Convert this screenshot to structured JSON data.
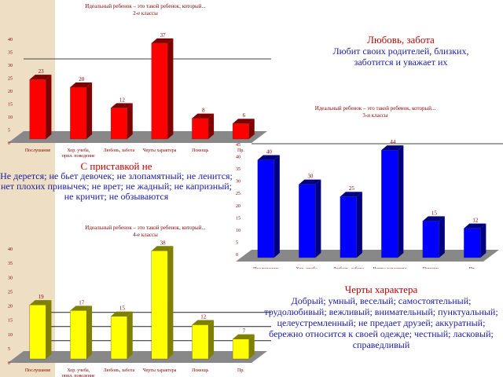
{
  "texts": {
    "love": {
      "heading": "Любовь, забота",
      "body": "Любит своих родителей, близких, заботится и уважает их"
    },
    "ne": {
      "heading": "С приставкой не",
      "body": "Не дерется; не бьет девочек; не злопамятный; не ленится; нет плохих привычек; не врет; не жадный; не капризный; не кричит; не обзываются"
    },
    "traits": {
      "heading": "Черты характера",
      "body": "Добрый; умный, веселый; самостоятельный; трудолюбивый; вежливый; внимательный; пунктуальный; целеустремленный; не предает друзей; аккуратный; бережно относится к своей одежде; честный; ласковый; справедливый"
    }
  },
  "chart_data": [
    {
      "type": "bar",
      "title": "Идеальный ребенок – это такой ребенок, который...",
      "subtitle": "2-е классы",
      "color": "#ff0000",
      "dark": "#800000",
      "categories": [
        "Послушание",
        "Хор. учеба, прил. поведение",
        "Любовь, забота",
        "Черты характера",
        "Помощь",
        "Пр."
      ],
      "values": [
        23,
        20,
        12,
        37,
        8,
        6
      ],
      "ylim": [
        0,
        40
      ],
      "ticks": [
        0,
        5,
        10,
        15,
        20,
        25,
        30,
        35,
        40
      ]
    },
    {
      "type": "bar",
      "title": "Идеальный ребенок – это такой ребенок, который...",
      "subtitle": "3-и классы",
      "color": "#0000ff",
      "dark": "#000080",
      "categories": [
        "Послушание",
        "Хор. учеба, прил. поведение",
        "Любовь, забота",
        "Черты характера",
        "Помощь",
        "Пр."
      ],
      "values": [
        40,
        30,
        25,
        44,
        15,
        12
      ],
      "ylim": [
        0,
        45
      ],
      "ticks": [
        0,
        5,
        10,
        15,
        20,
        25,
        30,
        35,
        40,
        45
      ]
    },
    {
      "type": "bar",
      "title": "Идеальный ребенок – это такой ребенок, который...",
      "subtitle": "4-е классы",
      "color": "#ffff00",
      "dark": "#808000",
      "categories": [
        "Послушание",
        "Хор. учеба, прил. поведение",
        "Любовь, забота",
        "Черты характера",
        "Помощь",
        "Пр."
      ],
      "values": [
        19,
        17,
        15,
        38,
        12,
        7
      ],
      "ylim": [
        0,
        40
      ],
      "ticks": [
        0,
        5,
        10,
        15,
        20,
        25,
        30,
        35,
        40
      ]
    }
  ]
}
